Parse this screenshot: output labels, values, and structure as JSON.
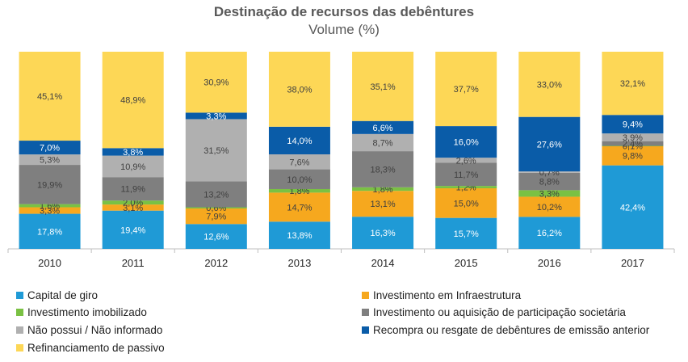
{
  "chart_data": {
    "type": "bar",
    "stacked": true,
    "percent": true,
    "title": "Destinação de recursos das debêntures",
    "subtitle": "Volume (%)",
    "categories": [
      "2010",
      "2011",
      "2012",
      "2013",
      "2014",
      "2015",
      "2016",
      "2017"
    ],
    "ylim": [
      0,
      100
    ],
    "grid": false,
    "legend_position": "bottom",
    "series": [
      {
        "name": "Capital de giro",
        "color": "#1f9ad6",
        "values": [
          17.8,
          19.4,
          12.6,
          13.8,
          16.3,
          15.7,
          16.2,
          42.4
        ],
        "labels": [
          "17,8%",
          "19,4%",
          "12,6%",
          "13,8%",
          "16,3%",
          "15,7%",
          "16,2%",
          "42,4%"
        ]
      },
      {
        "name": "Investimento em Infraestrutura",
        "color": "#f6a81e",
        "values": [
          3.3,
          3.1,
          7.9,
          14.7,
          13.1,
          15.0,
          10.2,
          9.8
        ],
        "labels": [
          "3,3%",
          "3,1%",
          "7,9%",
          "14,7%",
          "13,1%",
          "15,0%",
          "10,2%",
          "9,8%"
        ]
      },
      {
        "name": "Investimento imobilizado",
        "color": "#7ac143",
        "values": [
          1.6,
          2.0,
          0.6,
          1.8,
          1.8,
          1.2,
          3.3,
          0.1
        ],
        "labels": [
          "1,6%",
          "2,0%",
          "0,6%",
          "1,8%",
          "1,8%",
          "1,2%",
          "3,3%",
          "0,1%"
        ]
      },
      {
        "name": "Investimento ou aquisição de participação societária",
        "color": "#7f7f7f",
        "values": [
          19.9,
          11.9,
          13.2,
          10.0,
          18.3,
          11.7,
          8.8,
          2.4
        ],
        "labels": [
          "19,9%",
          "11,9%",
          "13,2%",
          "10,0%",
          "18,3%",
          "11,7%",
          "8,8%",
          "2,4%"
        ]
      },
      {
        "name": "Não possui / Não informado",
        "color": "#b0b0b0",
        "values": [
          5.3,
          10.9,
          31.5,
          7.6,
          8.7,
          2.6,
          0.7,
          3.9
        ],
        "labels": [
          "5,3%",
          "10,9%",
          "31,5%",
          "7,6%",
          "8,7%",
          "2,6%",
          "0,7%",
          "3,9%"
        ]
      },
      {
        "name": "Recompra ou resgate de debêntures de emissão anterior",
        "color": "#0a5ca8",
        "values": [
          7.0,
          3.8,
          3.3,
          14.0,
          6.6,
          16.0,
          27.6,
          9.4
        ],
        "labels": [
          "7,0%",
          "3,8%",
          "3,3%",
          "14,0%",
          "6,6%",
          "16,0%",
          "27,6%",
          "9,4%"
        ]
      },
      {
        "name": "Refinanciamento de passivo",
        "color": "#fdd756",
        "values": [
          45.1,
          48.9,
          30.9,
          38.0,
          35.1,
          37.7,
          33.0,
          32.1
        ],
        "labels": [
          "45,1%",
          "48,9%",
          "30,9%",
          "38,0%",
          "35,1%",
          "37,7%",
          "33,0%",
          "32,1%"
        ]
      }
    ]
  },
  "legend_order": [
    0,
    1,
    2,
    3,
    4,
    5,
    6
  ]
}
